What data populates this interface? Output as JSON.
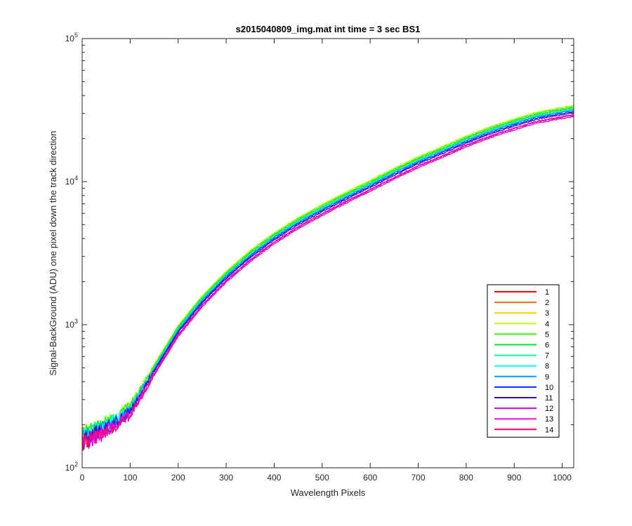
{
  "chart_data": {
    "type": "line",
    "title": "s2015040809_img.mat int time = 3 sec   BS1",
    "xlabel": "Wavelength Pixels",
    "ylabel": "Signal-BackGround (ADU) one pixel down the track direction",
    "xlim": [
      0,
      1024
    ],
    "ylim": [
      100,
      100000
    ],
    "yscale": "log",
    "grid": false,
    "legend_position": "bottom-right",
    "x_ticks": [
      0,
      100,
      200,
      300,
      400,
      500,
      600,
      700,
      800,
      900,
      1000
    ],
    "y_ticks": [
      {
        "value": 100,
        "base": "10",
        "exp": "2"
      },
      {
        "value": 1000,
        "base": "10",
        "exp": "3"
      },
      {
        "value": 10000,
        "base": "10",
        "exp": "4"
      },
      {
        "value": 100000,
        "base": "10",
        "exp": "5"
      }
    ],
    "base_curve": {
      "x": [
        0,
        50,
        100,
        150,
        200,
        250,
        300,
        350,
        400,
        450,
        500,
        550,
        600,
        650,
        700,
        750,
        800,
        850,
        900,
        950,
        1000,
        1024
      ],
      "y": [
        160,
        190,
        250,
        480,
        900,
        1450,
        2150,
        3000,
        4000,
        5100,
        6300,
        7700,
        9300,
        11300,
        13600,
        16000,
        19000,
        22000,
        25000,
        28000,
        30000,
        31000
      ]
    },
    "series": [
      {
        "name": "1",
        "color": "#ff0000",
        "factor": 1.03
      },
      {
        "name": "2",
        "color": "#ff6a00",
        "factor": 1.04
      },
      {
        "name": "3",
        "color": "#ffd000",
        "factor": 1.05
      },
      {
        "name": "4",
        "color": "#bfff00",
        "factor": 1.1
      },
      {
        "name": "5",
        "color": "#33ff00",
        "factor": 1.08
      },
      {
        "name": "6",
        "color": "#00e640",
        "factor": 1.06
      },
      {
        "name": "7",
        "color": "#00ff99",
        "factor": 1.04
      },
      {
        "name": "8",
        "color": "#00ffff",
        "factor": 1.03
      },
      {
        "name": "9",
        "color": "#0099ff",
        "factor": 1.02
      },
      {
        "name": "10",
        "color": "#0033ff",
        "factor": 1.0
      },
      {
        "name": "11",
        "color": "#3300cc",
        "factor": 0.98
      },
      {
        "name": "12",
        "color": "#cc00ff",
        "factor": 0.92
      },
      {
        "name": "13",
        "color": "#ff00ff",
        "factor": 0.95
      },
      {
        "name": "14",
        "color": "#ff0066",
        "factor": 0.94
      }
    ]
  }
}
